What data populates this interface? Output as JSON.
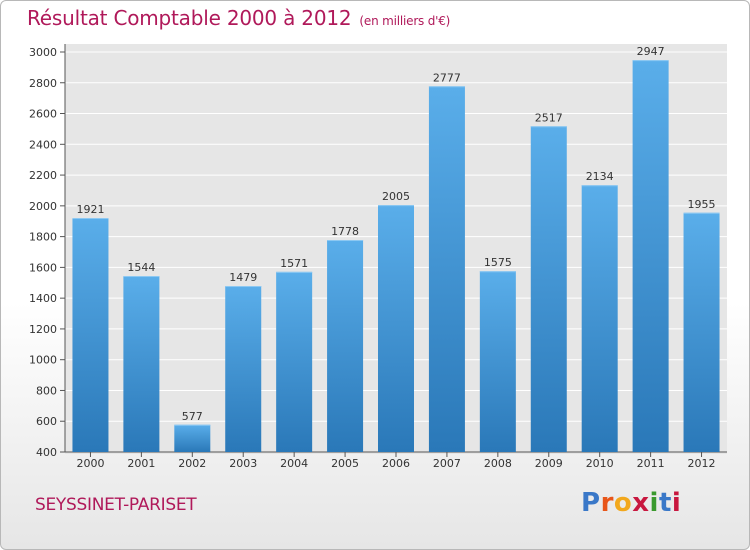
{
  "header": {
    "title": "Résultat Comptable 2000 à 2012",
    "unit": "(en milliers d'€)"
  },
  "footer": {
    "commune": "SEYSSINET-PARISET",
    "logo_letters": [
      "P",
      "r",
      "o",
      "x",
      "i",
      "t",
      "i"
    ],
    "logo_colors": [
      "#3a78c8",
      "#e8561a",
      "#f2a81d",
      "#c8173f",
      "#3a9a2e",
      "#3a78c8",
      "#c8173f"
    ]
  },
  "colors": {
    "bar_top": "#5aaeea",
    "bar_bottom": "#2a78b8",
    "grid": "#ffffff",
    "axis_text": "#333333"
  },
  "chart_data": {
    "type": "bar",
    "title": "Résultat Comptable 2000 à 2012",
    "ylabel": "(en milliers d'€)",
    "xlabel": "",
    "categories": [
      "2000",
      "2001",
      "2002",
      "2003",
      "2004",
      "2005",
      "2006",
      "2007",
      "2008",
      "2009",
      "2010",
      "2011",
      "2012"
    ],
    "values": [
      1921,
      1544,
      577,
      1479,
      1571,
      1778,
      2005,
      2777,
      1575,
      2517,
      2134,
      2947,
      1955
    ],
    "ylim": [
      400,
      3000
    ],
    "yticks": [
      400,
      600,
      800,
      1000,
      1200,
      1400,
      1600,
      1800,
      2000,
      2200,
      2400,
      2600,
      2800,
      3000
    ],
    "grid": true
  }
}
